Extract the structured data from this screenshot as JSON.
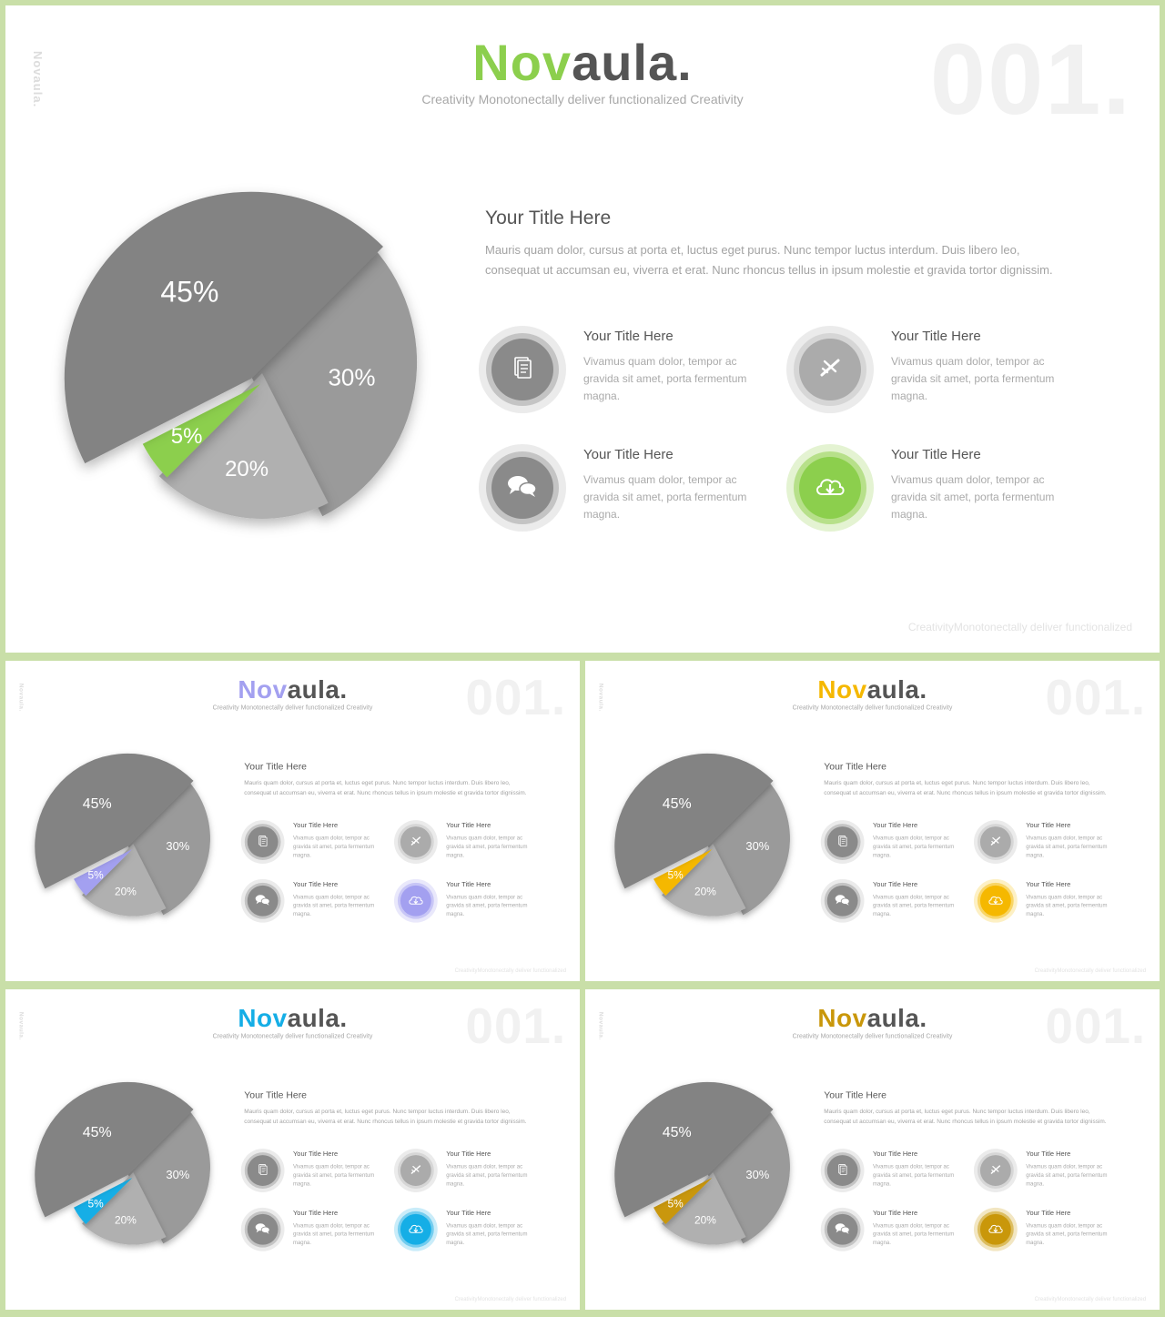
{
  "brand": {
    "part1": "Nov",
    "part2": "aula.",
    "side": "Novaula."
  },
  "subtitle": "Creativity Monotonectally  deliver functionalized Creativity",
  "slide_number": "001.",
  "footer": "CreativityMonotonectally deliver functionalized",
  "main": {
    "title": "Your Title Here",
    "body": "Mauris quam dolor, cursus at porta et, luctus eget purus. Nunc tempor luctus interdum. Duis libero leo, consequat ut accumsan eu, viverra et erat. Nunc rhoncus tellus in ipsum molestie et gravida tortor dignissim."
  },
  "features": [
    {
      "title": "Your Title Here",
      "text": "Vivamus quam dolor, tempor ac gravida sit amet, porta fermentum magna.",
      "icon": "document-icon"
    },
    {
      "title": "Your Title Here",
      "text": "Vivamus quam dolor, tempor ac gravida sit amet, porta fermentum magna.",
      "icon": "airplane-icon"
    },
    {
      "title": "Your Title Here",
      "text": "Vivamus quam dolor, tempor ac gravida sit amet, porta fermentum magna.",
      "icon": "chat-bubbles-icon"
    },
    {
      "title": "Your Title Here",
      "text": "Vivamus quam dolor, tempor ac gravida sit amet, porta fermentum magna.",
      "icon": "cloud-download-icon"
    }
  ],
  "variants": [
    {
      "name": "green",
      "accent": "#8ccf4d",
      "soft": "#b7e08a",
      "pale": "#e4f3d2"
    },
    {
      "name": "purple",
      "accent": "#a3a0f0",
      "soft": "#c8c6f6",
      "pale": "#e9e8fb"
    },
    {
      "name": "yellow",
      "accent": "#f5b800",
      "soft": "#f8d566",
      "pale": "#fdf0c4"
    },
    {
      "name": "blue",
      "accent": "#15aee6",
      "soft": "#73cdef",
      "pale": "#c9ecf9"
    },
    {
      "name": "gold",
      "accent": "#c9970a",
      "soft": "#dcbd5f",
      "pale": "#f2e6c2"
    }
  ],
  "chart_data": {
    "type": "pie",
    "categories": [
      "30%",
      "20%",
      "5%",
      "45%"
    ],
    "values": [
      30,
      20,
      5,
      45
    ],
    "colors": [
      "#9a9a9a",
      "#b0b0b0",
      "accent",
      "#838383"
    ],
    "labels": [
      "30%",
      "20%",
      "5%",
      "45%"
    ]
  }
}
